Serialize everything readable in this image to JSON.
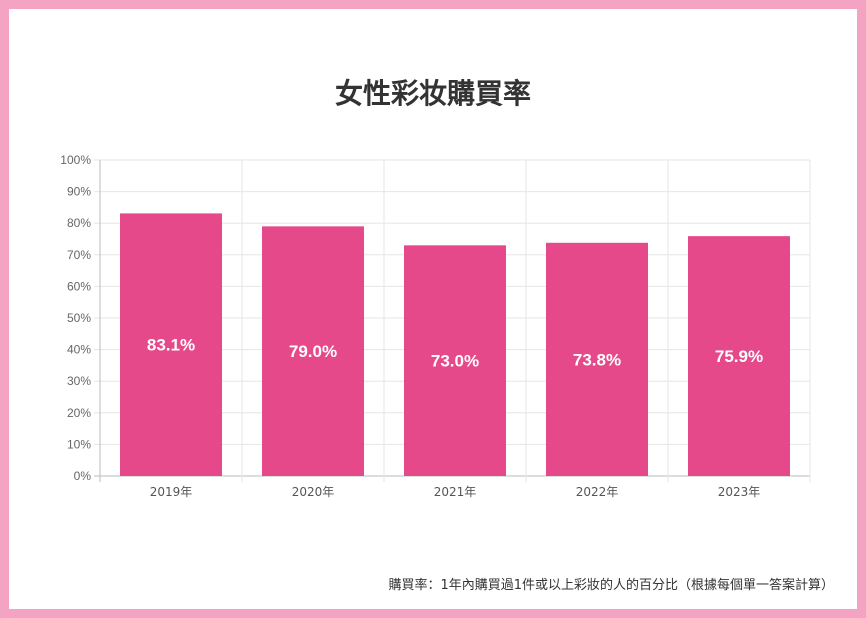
{
  "chart_data": {
    "type": "bar",
    "title": "女性彩妆購買率",
    "categories": [
      "2019年",
      "2020年",
      "2021年",
      "2022年",
      "2023年"
    ],
    "values": [
      83.1,
      79.0,
      73.0,
      73.8,
      75.9
    ],
    "data_labels": [
      "83.1%",
      "79.0%",
      "73.0%",
      "73.8%",
      "75.9%"
    ],
    "ylim": [
      0,
      100
    ],
    "y_ticks": [
      0,
      10,
      20,
      30,
      40,
      50,
      60,
      70,
      80,
      90,
      100
    ],
    "y_tick_labels": [
      "0%",
      "10%",
      "20%",
      "30%",
      "40%",
      "50%",
      "60%",
      "70%",
      "80%",
      "90%",
      "100%"
    ],
    "xlabel": "",
    "ylabel": "",
    "grid": true,
    "legend": "none",
    "bar_color": "#e5498a"
  },
  "footnote": "購買率：1年內購買過1件或以上彩妝的人的百分比（根據每個單一答案計算）",
  "colors": {
    "frame": "#f4a3c2",
    "bar": "#e5498a",
    "grid": "#e6e6e6",
    "axis": "#bbbbbb"
  }
}
